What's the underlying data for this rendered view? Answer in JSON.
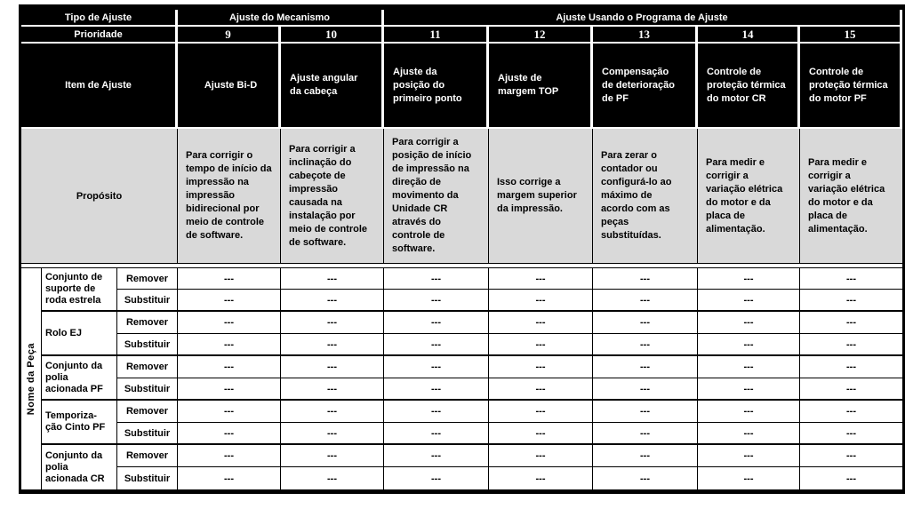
{
  "table": {
    "header": {
      "tipo_de_ajuste": "Tipo de Ajuste",
      "ajuste_mecanismo": "Ajuste do Mecanismo",
      "ajuste_programa": "Ajuste Usando o Programa de Ajuste",
      "prioridade": "Prioridade",
      "item_de_ajuste": "Item de Ajuste",
      "proposito": "Propósito",
      "nome_da_peca": "Nome da Peça"
    },
    "columns": [
      {
        "priority": "9",
        "item": "Ajuste Bi-D",
        "purpose": "Para corrigir o\ntempo de início da\nimpressão na\nimpressão\nbidirecional por\nmeio de controle\nde software."
      },
      {
        "priority": "10",
        "item": "Ajuste angular\nda cabeça",
        "purpose": "Para corrigir a\ninclinação do\ncabeçote de\nimpressão\ncausada na\ninstalação por\nmeio de controle\nde software."
      },
      {
        "priority": "11",
        "item": "Ajuste da\nposição do\nprimeiro ponto",
        "purpose": "Para corrigir a\nposição de início\nde impressão na\ndireção de\nmovimento da\nUnidade CR\natravés do\ncontrole de\nsoftware."
      },
      {
        "priority": "12",
        "item": "Ajuste de\nmargem TOP",
        "purpose": "Isso corrige a\nmargem superior\nda impressão."
      },
      {
        "priority": "13",
        "item": "Compensação\nde deterioração\nde PF",
        "purpose": "Para zerar o\ncontador ou\nconfigurá-lo ao\nmáximo de\nacordo com as\npeças\nsubstituídas."
      },
      {
        "priority": "14",
        "item": "Controle de\nproteção térmica\ndo motor CR",
        "purpose": "Para medir e\ncorrigir a\nvariação elétrica\ndo motor e da\nplaca de\nalimentação."
      },
      {
        "priority": "15",
        "item": "Controle de\nproteção térmica\ndo motor PF",
        "purpose": "Para medir e\ncorrigir a\nvariação elétrica\ndo motor e da\nplaca de\nalimentação."
      }
    ],
    "parts": [
      {
        "name": "Conjunto de\nsuporte de\nroda estrela",
        "rows": [
          {
            "action": "Remover",
            "values": [
              "---",
              "---",
              "---",
              "---",
              "---",
              "---",
              "---"
            ]
          },
          {
            "action": "Substituir",
            "values": [
              "---",
              "---",
              "---",
              "---",
              "---",
              "---",
              "---"
            ]
          }
        ]
      },
      {
        "name": "Rolo EJ",
        "rows": [
          {
            "action": "Remover",
            "values": [
              "---",
              "---",
              "---",
              "---",
              "---",
              "---",
              "---"
            ]
          },
          {
            "action": "Substituir",
            "values": [
              "---",
              "---",
              "---",
              "---",
              "---",
              "---",
              "---"
            ]
          }
        ]
      },
      {
        "name": "Conjunto da\npolia\nacionada PF",
        "rows": [
          {
            "action": "Remover",
            "values": [
              "---",
              "---",
              "---",
              "---",
              "---",
              "---",
              "---"
            ]
          },
          {
            "action": "Substituir",
            "values": [
              "---",
              "---",
              "---",
              "---",
              "---",
              "---",
              "---"
            ]
          }
        ]
      },
      {
        "name": "Temporiza-\nção Cinto PF",
        "rows": [
          {
            "action": "Remover",
            "values": [
              "---",
              "---",
              "---",
              "---",
              "---",
              "---",
              "---"
            ]
          },
          {
            "action": "Substituir",
            "values": [
              "---",
              "---",
              "---",
              "---",
              "---",
              "---",
              "---"
            ]
          }
        ]
      },
      {
        "name": "Conjunto da\npolia\nacionada CR",
        "rows": [
          {
            "action": "Remover",
            "values": [
              "---",
              "---",
              "---",
              "---",
              "---",
              "---",
              "---"
            ]
          },
          {
            "action": "Substituir",
            "values": [
              "---",
              "---",
              "---",
              "---",
              "---",
              "---",
              "---"
            ]
          }
        ]
      }
    ],
    "empty_value": "---"
  },
  "colors": {
    "header_bg": "#000000",
    "header_text": "#ffffff",
    "purpose_row_bg": "#d9d9d9",
    "grid_line": "#000000",
    "body_bg": "#ffffff",
    "body_text": "#000000"
  }
}
